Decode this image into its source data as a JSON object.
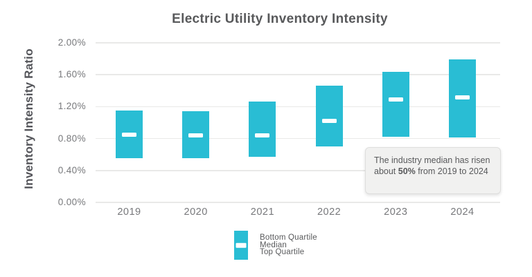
{
  "title": "Electric Utility Inventory Intensity",
  "y_axis_label": "Inventory Intensity Ratio",
  "colors": {
    "background": "#ffffff",
    "bar_fill": "#29bdd4",
    "median_marker": "#ffffff",
    "gridline": "#e9e9e8",
    "title_text": "#58595b",
    "axis_label_text": "#54555a",
    "axis_tick_text": "#77787b",
    "annotation_bg": "#f1f1f0",
    "annotation_border": "#dededd",
    "annotation_text": "#58595b"
  },
  "chart_data": {
    "type": "bar",
    "subtype": "floating-quartile-range-with-median",
    "title": "Electric Utility Inventory Intensity",
    "xlabel": "",
    "ylabel": "Inventory Intensity Ratio",
    "categories": [
      "2019",
      "2020",
      "2021",
      "2022",
      "2023",
      "2024"
    ],
    "series": [
      {
        "name": "Bottom Quartile",
        "values": [
          0.55,
          0.55,
          0.57,
          0.7,
          0.82,
          0.81
        ]
      },
      {
        "name": "Median",
        "values": [
          0.85,
          0.84,
          0.84,
          1.02,
          1.29,
          1.32
        ]
      },
      {
        "name": "Top Quartile",
        "values": [
          1.15,
          1.14,
          1.26,
          1.46,
          1.64,
          1.79
        ]
      }
    ],
    "units": "percent",
    "ylim": [
      0,
      2.0
    ],
    "yticks": [
      "0.00%",
      "0.40%",
      "0.80%",
      "1.20%",
      "1.60%",
      "2.00%"
    ],
    "grid": true,
    "legend_position": "bottom"
  },
  "legend": {
    "items": [
      "Bottom Quartile",
      "Median",
      "Top Quartile"
    ]
  },
  "annotation": {
    "before": "The industry median has risen about ",
    "bold": "50%",
    "after": " from 2019 to 2024"
  }
}
